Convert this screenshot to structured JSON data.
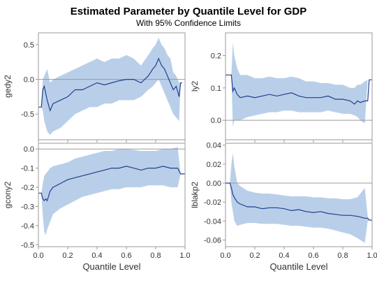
{
  "title": "Estimated Parameter by Quantile Level for GDP",
  "subtitle": "With 95% Confidence Limits",
  "xlabel": "Quantile Level",
  "colors": {
    "band": "#b9cfe9",
    "line": "#1f3f8f",
    "ref": "#9a9a9a",
    "frame": "#9a9a9a"
  },
  "chart_data": [
    {
      "type": "line",
      "ylabel": "gedy2",
      "xlim": [
        0,
        1
      ],
      "ylim": [
        -0.87,
        0.67
      ],
      "xticks": [
        0.0,
        0.2,
        0.4,
        0.6,
        0.8,
        1.0
      ],
      "yticks": [
        -0.5,
        0.0,
        0.5
      ],
      "ytick_labels": [
        "-0.5",
        "0.0",
        "0.5"
      ],
      "reference_y": 0,
      "x": [
        0.0,
        0.02,
        0.03,
        0.04,
        0.06,
        0.08,
        0.1,
        0.15,
        0.2,
        0.25,
        0.3,
        0.35,
        0.4,
        0.45,
        0.5,
        0.55,
        0.6,
        0.65,
        0.7,
        0.75,
        0.78,
        0.8,
        0.82,
        0.84,
        0.86,
        0.88,
        0.9,
        0.92,
        0.94,
        0.96,
        0.97,
        0.98
      ],
      "estimate": [
        -0.4,
        -0.4,
        -0.15,
        -0.1,
        -0.3,
        -0.45,
        -0.35,
        -0.3,
        -0.25,
        -0.15,
        -0.15,
        -0.1,
        -0.05,
        -0.08,
        -0.05,
        -0.02,
        0.0,
        0.0,
        -0.05,
        0.05,
        0.15,
        0.2,
        0.3,
        0.2,
        0.15,
        0.05,
        -0.05,
        -0.15,
        -0.1,
        -0.25,
        -0.05,
        -0.05
      ],
      "lower": [
        -0.4,
        -0.4,
        -0.45,
        -0.6,
        -0.75,
        -0.8,
        -0.75,
        -0.7,
        -0.6,
        -0.5,
        -0.45,
        -0.4,
        -0.4,
        -0.35,
        -0.35,
        -0.3,
        -0.3,
        -0.3,
        -0.25,
        -0.15,
        -0.1,
        -0.05,
        0.0,
        -0.1,
        -0.2,
        -0.3,
        -0.4,
        -0.5,
        -0.55,
        -0.6,
        -0.05,
        -0.05
      ],
      "upper": [
        -0.4,
        -0.4,
        0.0,
        0.05,
        0.15,
        -0.05,
        0.0,
        0.05,
        0.1,
        0.15,
        0.2,
        0.25,
        0.3,
        0.25,
        0.3,
        0.3,
        0.35,
        0.3,
        0.2,
        0.35,
        0.45,
        0.5,
        0.6,
        0.5,
        0.45,
        0.35,
        0.3,
        0.1,
        0.05,
        -0.05,
        -0.05,
        -0.05
      ]
    },
    {
      "type": "line",
      "ylabel": "ly2",
      "xlim": [
        0,
        1
      ],
      "ylim": [
        -0.06,
        0.27
      ],
      "xticks": [
        0.0,
        0.2,
        0.4,
        0.6,
        0.8,
        1.0
      ],
      "yticks": [
        0.0,
        0.1,
        0.2
      ],
      "ytick_labels": [
        "0.0",
        "0.1",
        "0.2"
      ],
      "reference_y": 0,
      "x": [
        0.0,
        0.02,
        0.04,
        0.05,
        0.06,
        0.08,
        0.1,
        0.15,
        0.2,
        0.25,
        0.3,
        0.35,
        0.4,
        0.45,
        0.5,
        0.55,
        0.6,
        0.65,
        0.7,
        0.75,
        0.8,
        0.85,
        0.88,
        0.9,
        0.92,
        0.95,
        0.97,
        0.98,
        1.0
      ],
      "estimate": [
        0.14,
        0.14,
        0.14,
        0.09,
        0.1,
        0.08,
        0.07,
        0.075,
        0.07,
        0.075,
        0.08,
        0.075,
        0.08,
        0.085,
        0.075,
        0.07,
        0.07,
        0.07,
        0.075,
        0.065,
        0.065,
        0.06,
        0.05,
        0.06,
        0.055,
        0.06,
        0.06,
        0.125,
        0.125
      ],
      "lower": [
        0.14,
        0.14,
        0.14,
        -0.02,
        0.0,
        0.0,
        0.0,
        0.01,
        0.015,
        0.02,
        0.025,
        0.025,
        0.03,
        0.03,
        0.025,
        0.025,
        0.025,
        0.025,
        0.03,
        0.025,
        0.02,
        0.02,
        0.015,
        0.01,
        0.0,
        -0.01,
        0.125,
        0.125,
        0.125
      ],
      "upper": [
        0.14,
        0.14,
        0.14,
        0.24,
        0.2,
        0.16,
        0.14,
        0.14,
        0.13,
        0.13,
        0.135,
        0.13,
        0.13,
        0.135,
        0.13,
        0.12,
        0.12,
        0.115,
        0.115,
        0.11,
        0.11,
        0.1,
        0.1,
        0.11,
        0.11,
        0.12,
        0.125,
        0.125,
        0.125
      ]
    },
    {
      "type": "line",
      "ylabel": "gcony2",
      "xlim": [
        0,
        1
      ],
      "ylim": [
        -0.51,
        0.03
      ],
      "xticks": [
        0.0,
        0.2,
        0.4,
        0.6,
        0.8,
        1.0
      ],
      "xtick_labels": [
        "0.0",
        "0.2",
        "0.4",
        "0.6",
        "0.8",
        "1.0"
      ],
      "yticks": [
        0.0,
        -0.1,
        -0.2,
        -0.3,
        -0.4,
        -0.5
      ],
      "ytick_labels": [
        "0.0",
        "-0.1",
        "-0.2",
        "-0.3",
        "-0.4",
        "-0.5"
      ],
      "reference_y": 0,
      "x": [
        0.0,
        0.02,
        0.03,
        0.04,
        0.05,
        0.06,
        0.08,
        0.1,
        0.15,
        0.2,
        0.25,
        0.3,
        0.35,
        0.4,
        0.45,
        0.5,
        0.55,
        0.6,
        0.65,
        0.7,
        0.75,
        0.8,
        0.85,
        0.9,
        0.95,
        0.97,
        1.0
      ],
      "estimate": [
        -0.23,
        -0.23,
        -0.26,
        -0.27,
        -0.26,
        -0.27,
        -0.22,
        -0.2,
        -0.18,
        -0.16,
        -0.15,
        -0.14,
        -0.13,
        -0.12,
        -0.11,
        -0.1,
        -0.1,
        -0.09,
        -0.1,
        -0.11,
        -0.1,
        -0.1,
        -0.09,
        -0.1,
        -0.1,
        -0.13,
        -0.13
      ],
      "lower": [
        -0.23,
        -0.23,
        -0.35,
        -0.43,
        -0.45,
        -0.42,
        -0.38,
        -0.34,
        -0.31,
        -0.29,
        -0.27,
        -0.25,
        -0.24,
        -0.23,
        -0.22,
        -0.21,
        -0.21,
        -0.2,
        -0.2,
        -0.2,
        -0.19,
        -0.19,
        -0.19,
        -0.2,
        -0.2,
        -0.13,
        -0.13
      ],
      "upper": [
        -0.23,
        -0.23,
        -0.18,
        -0.14,
        -0.13,
        -0.12,
        -0.1,
        -0.09,
        -0.08,
        -0.07,
        -0.05,
        -0.04,
        -0.03,
        -0.02,
        -0.01,
        -0.01,
        0.0,
        0.0,
        -0.005,
        -0.01,
        -0.01,
        -0.01,
        0.0,
        0.0,
        0.01,
        -0.13,
        -0.13
      ]
    },
    {
      "type": "line",
      "ylabel": "lblakp2",
      "xlim": [
        0,
        1
      ],
      "ylim": [
        -0.067,
        0.042
      ],
      "xticks": [
        0.0,
        0.2,
        0.4,
        0.6,
        0.8,
        1.0
      ],
      "xtick_labels": [
        "0.0",
        "0.2",
        "0.4",
        "0.6",
        "0.8",
        "1.0"
      ],
      "yticks": [
        0.04,
        0.02,
        0.0,
        -0.02,
        -0.04,
        -0.06
      ],
      "ytick_labels": [
        "0.04",
        "0.02",
        "0.00",
        "-0.02",
        "-0.04",
        "-0.06"
      ],
      "reference_y": 0,
      "x": [
        0.0,
        0.03,
        0.04,
        0.05,
        0.06,
        0.08,
        0.1,
        0.15,
        0.2,
        0.25,
        0.3,
        0.35,
        0.4,
        0.45,
        0.5,
        0.55,
        0.6,
        0.65,
        0.7,
        0.75,
        0.8,
        0.85,
        0.9,
        0.95,
        0.97,
        0.98,
        1.0
      ],
      "estimate": [
        0.0,
        0.0,
        -0.005,
        -0.012,
        -0.015,
        -0.02,
        -0.022,
        -0.025,
        -0.025,
        -0.027,
        -0.026,
        -0.026,
        -0.027,
        -0.029,
        -0.028,
        -0.03,
        -0.031,
        -0.03,
        -0.032,
        -0.033,
        -0.034,
        -0.034,
        -0.035,
        -0.037,
        -0.037,
        -0.039,
        -0.039
      ],
      "lower": [
        0.0,
        0.0,
        -0.02,
        -0.03,
        -0.04,
        -0.045,
        -0.044,
        -0.042,
        -0.042,
        -0.043,
        -0.043,
        -0.043,
        -0.044,
        -0.045,
        -0.045,
        -0.046,
        -0.047,
        -0.047,
        -0.048,
        -0.05,
        -0.052,
        -0.054,
        -0.058,
        -0.063,
        -0.04,
        -0.039,
        -0.039
      ],
      "upper": [
        0.0,
        0.0,
        0.02,
        0.032,
        0.018,
        0.0,
        -0.003,
        -0.008,
        -0.01,
        -0.011,
        -0.011,
        -0.012,
        -0.013,
        -0.014,
        -0.014,
        -0.014,
        -0.015,
        -0.015,
        -0.016,
        -0.016,
        -0.017,
        -0.017,
        -0.015,
        -0.005,
        -0.035,
        -0.039,
        -0.039
      ]
    }
  ]
}
